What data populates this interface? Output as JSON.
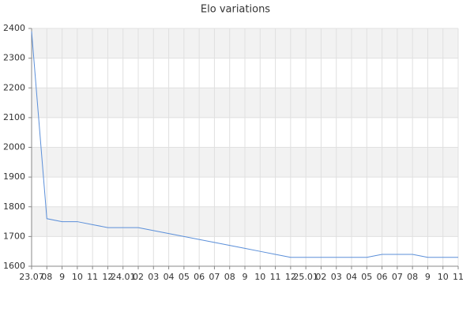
{
  "chart_data": {
    "type": "line",
    "title": "Elo variations",
    "categories": [
      "23.07",
      "08",
      "9",
      "10",
      "11",
      "12",
      "24.01",
      "02",
      "03",
      "04",
      "05",
      "06",
      "07",
      "08",
      "9",
      "10",
      "11",
      "12",
      "25.01",
      "02",
      "03",
      "04",
      "05",
      "06",
      "07",
      "08",
      "9",
      "10",
      "11"
    ],
    "values": [
      2390,
      1760,
      1750,
      1750,
      1740,
      1730,
      1730,
      1730,
      1720,
      1710,
      1700,
      1690,
      1680,
      1670,
      1660,
      1650,
      1640,
      1630,
      1630,
      1630,
      1630,
      1630,
      1630,
      1640,
      1640,
      1640,
      1630,
      1630,
      1630
    ],
    "color": "#5b8fd9",
    "ylim": [
      1600,
      2400
    ],
    "yticks": [
      1600,
      1700,
      1800,
      1900,
      2000,
      2100,
      2200,
      2300,
      2400
    ],
    "grid": true
  }
}
